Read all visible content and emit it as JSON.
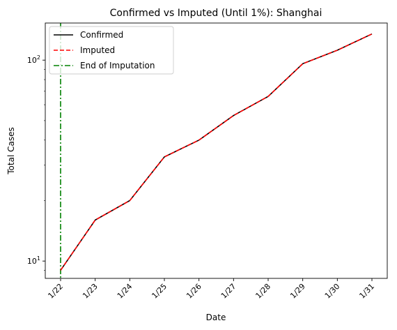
{
  "chart_data": {
    "type": "line",
    "title": "Confirmed vs Imputed (Until 1%): Shanghai",
    "xlabel": "Date",
    "ylabel": "Total Cases",
    "categories": [
      "1/22",
      "1/23",
      "1/24",
      "1/25",
      "1/26",
      "1/27",
      "1/28",
      "1/29",
      "1/30",
      "1/31"
    ],
    "yscale": "log",
    "ylim": [
      8.2,
      153
    ],
    "yticks": [
      {
        "value": 10,
        "label": "10",
        "base": "10",
        "exp": "1"
      },
      {
        "value": 100,
        "label": "10^2",
        "base": "10",
        "exp": "2"
      }
    ],
    "series": [
      {
        "name": "Confirmed",
        "color": "#000000",
        "style": "solid",
        "values": [
          9,
          16,
          20,
          33,
          40,
          53,
          66,
          96,
          112,
          135
        ]
      },
      {
        "name": "Imputed",
        "color": "#ff0000",
        "style": "dashed",
        "values": [
          9,
          16,
          20,
          33,
          40,
          53,
          66,
          96,
          112,
          135
        ]
      }
    ],
    "vline": {
      "name": "End of Imputation",
      "color": "#008000",
      "style": "dashdot",
      "x": "1/22"
    },
    "legend_position": "top-left",
    "grid": false
  }
}
